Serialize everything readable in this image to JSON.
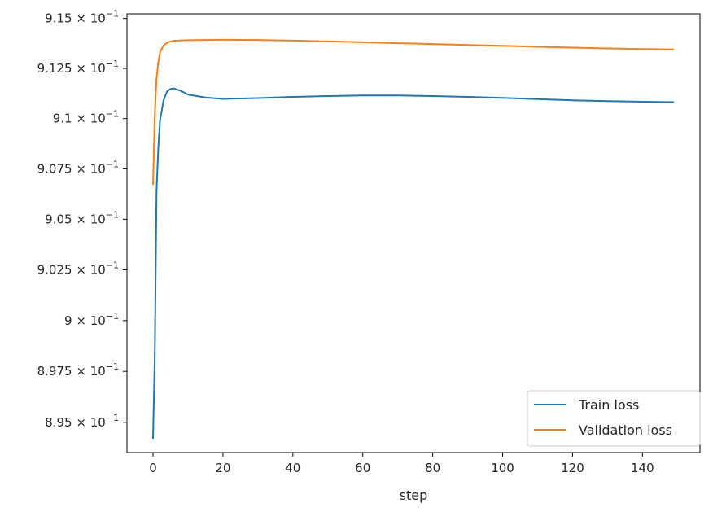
{
  "chart_data": {
    "type": "line",
    "title": "",
    "xlabel": "step",
    "ylabel": "",
    "xlim": [
      -7.45,
      156.45
    ],
    "ylim": [
      0.89352,
      0.91523
    ],
    "x_ticks": [
      0,
      20,
      40,
      60,
      80,
      100,
      120,
      140
    ],
    "x_tick_labels": [
      "0",
      "20",
      "40",
      "60",
      "80",
      "100",
      "120",
      "140"
    ],
    "y_ticks": [
      0.895,
      0.8975,
      0.9,
      0.9025,
      0.905,
      0.9075,
      0.91,
      0.9125,
      0.915
    ],
    "y_tick_labels": [
      {
        "mantissa": "8.95",
        "times": "×",
        "base": "10",
        "exponent": "−1"
      },
      {
        "mantissa": "8.975",
        "times": "×",
        "base": "10",
        "exponent": "−1"
      },
      {
        "mantissa": "9",
        "times": "×",
        "base": "10",
        "exponent": "−1"
      },
      {
        "mantissa": "9.025",
        "times": "×",
        "base": "10",
        "exponent": "−1"
      },
      {
        "mantissa": "9.05",
        "times": "×",
        "base": "10",
        "exponent": "−1"
      },
      {
        "mantissa": "9.075",
        "times": "×",
        "base": "10",
        "exponent": "−1"
      },
      {
        "mantissa": "9.1",
        "times": "×",
        "base": "10",
        "exponent": "−1"
      },
      {
        "mantissa": "9.125",
        "times": "×",
        "base": "10",
        "exponent": "−1"
      },
      {
        "mantissa": "9.15",
        "times": "×",
        "base": "10",
        "exponent": "−1"
      }
    ],
    "y_scale": "log",
    "grid": false,
    "legend_position": "lower-right",
    "series": [
      {
        "name": "Train loss",
        "color": "#1f77b4",
        "x": [
          0,
          0.5,
          1,
          1.5,
          2,
          3,
          4,
          5,
          6,
          8,
          10,
          15,
          20,
          30,
          40,
          50,
          60,
          70,
          80,
          90,
          100,
          110,
          120,
          130,
          140,
          149
        ],
        "y": [
          0.8942,
          0.8982,
          0.9064,
          0.9085,
          0.9099,
          0.9109,
          0.91135,
          0.91148,
          0.9115,
          0.91138,
          0.9112,
          0.91105,
          0.91098,
          0.91102,
          0.91108,
          0.91112,
          0.91115,
          0.91115,
          0.91112,
          0.91108,
          0.91103,
          0.91097,
          0.91091,
          0.91087,
          0.91084,
          0.91082
        ]
      },
      {
        "name": "Validation loss",
        "color": "#ff7f0e",
        "x": [
          0,
          0.5,
          1,
          1.5,
          2,
          3,
          4,
          5,
          6,
          8,
          10,
          15,
          20,
          30,
          40,
          50,
          60,
          70,
          80,
          90,
          100,
          110,
          120,
          130,
          140,
          149
        ],
        "y": [
          0.9067,
          0.9102,
          0.912,
          0.9128,
          0.9133,
          0.91365,
          0.91378,
          0.91385,
          0.91388,
          0.9139,
          0.91391,
          0.91392,
          0.91393,
          0.91392,
          0.91389,
          0.91385,
          0.91381,
          0.91376,
          0.91372,
          0.91367,
          0.91363,
          0.91358,
          0.91354,
          0.9135,
          0.91347,
          0.91345
        ]
      }
    ]
  }
}
